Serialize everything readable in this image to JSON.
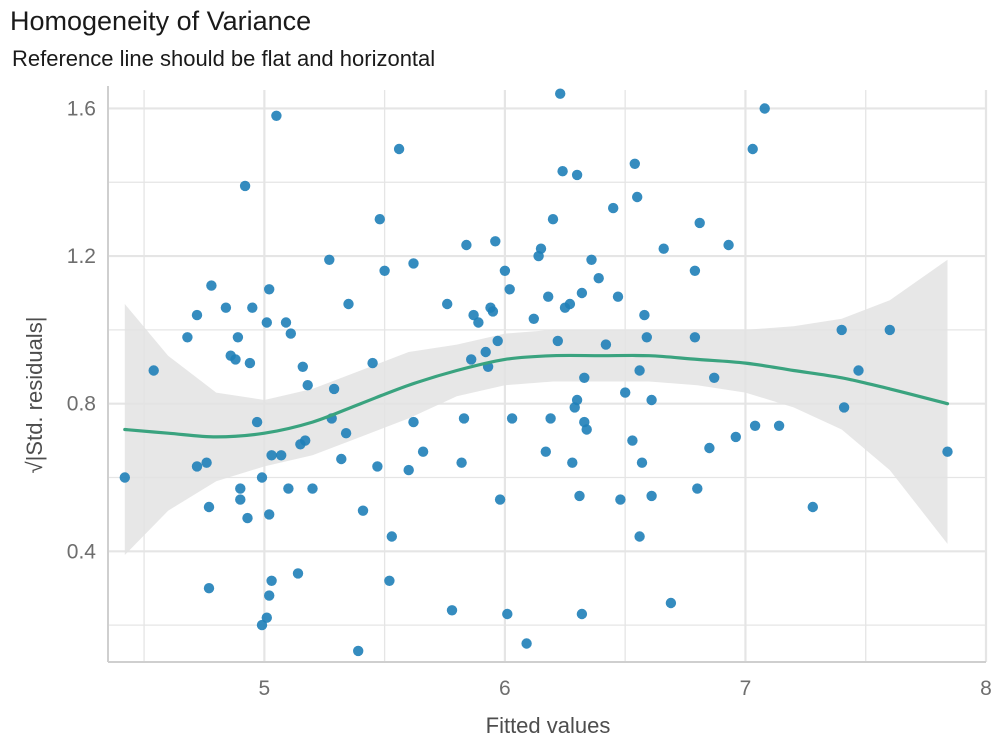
{
  "chart_data": {
    "type": "scatter",
    "title": "Homogeneity of Variance",
    "subtitle": "Reference line should be flat and horizontal",
    "xlabel": "Fitted values",
    "ylabel": "√|Std. residuals|",
    "ylabel_radical": "√",
    "ylabel_text": "|Std. residuals|",
    "xlim": [
      4.35,
      8.0
    ],
    "ylim": [
      0.1,
      1.65
    ],
    "x_ticks": [
      5,
      6,
      7,
      8
    ],
    "x_tick_labels": [
      "5",
      "6",
      "7",
      "8"
    ],
    "y_ticks": [
      0.4,
      0.8,
      1.2,
      1.6
    ],
    "y_tick_labels": [
      "0.4",
      "0.8",
      "1.2",
      "1.6"
    ],
    "x_minor_ticks": [
      4.5,
      5.5,
      6.5,
      7.5
    ],
    "y_minor_ticks": [
      0.2,
      0.6,
      1.0,
      1.4
    ],
    "grid": true,
    "colors": {
      "points": "#1f7fb8",
      "smooth": "#3aa37f",
      "band": "#e3e3e3",
      "grid": "#e5e5e5"
    },
    "series": [
      {
        "type": "scatter",
        "points": [
          [
            4.42,
            0.6
          ],
          [
            4.54,
            0.89
          ],
          [
            4.68,
            0.98
          ],
          [
            4.72,
            1.04
          ],
          [
            4.72,
            0.63
          ],
          [
            4.76,
            0.64
          ],
          [
            4.77,
            0.52
          ],
          [
            4.78,
            1.12
          ],
          [
            4.77,
            0.3
          ],
          [
            4.84,
            1.06
          ],
          [
            4.86,
            0.93
          ],
          [
            4.88,
            0.92
          ],
          [
            4.89,
            0.98
          ],
          [
            4.9,
            0.57
          ],
          [
            4.9,
            0.54
          ],
          [
            4.92,
            1.39
          ],
          [
            4.93,
            0.49
          ],
          [
            4.94,
            0.91
          ],
          [
            4.95,
            1.06
          ],
          [
            4.97,
            0.75
          ],
          [
            4.99,
            0.6
          ],
          [
            4.99,
            0.2
          ],
          [
            5.01,
            0.22
          ],
          [
            5.01,
            1.02
          ],
          [
            5.02,
            0.5
          ],
          [
            5.02,
            0.28
          ],
          [
            5.02,
            1.11
          ],
          [
            5.03,
            0.66
          ],
          [
            5.03,
            0.32
          ],
          [
            5.05,
            1.58
          ],
          [
            5.07,
            0.66
          ],
          [
            5.09,
            1.02
          ],
          [
            5.1,
            0.57
          ],
          [
            5.11,
            0.99
          ],
          [
            5.14,
            0.34
          ],
          [
            5.15,
            0.69
          ],
          [
            5.16,
            0.9
          ],
          [
            5.17,
            0.7
          ],
          [
            5.18,
            0.85
          ],
          [
            5.2,
            0.57
          ],
          [
            5.27,
            1.19
          ],
          [
            5.28,
            0.76
          ],
          [
            5.29,
            0.84
          ],
          [
            5.32,
            0.65
          ],
          [
            5.34,
            0.72
          ],
          [
            5.35,
            1.07
          ],
          [
            5.39,
            0.13
          ],
          [
            5.41,
            0.51
          ],
          [
            5.45,
            0.91
          ],
          [
            5.47,
            0.63
          ],
          [
            5.48,
            1.3
          ],
          [
            5.5,
            1.16
          ],
          [
            5.52,
            0.32
          ],
          [
            5.53,
            0.44
          ],
          [
            5.56,
            1.49
          ],
          [
            5.6,
            0.62
          ],
          [
            5.62,
            1.18
          ],
          [
            5.62,
            0.75
          ],
          [
            5.66,
            0.67
          ],
          [
            5.76,
            1.07
          ],
          [
            5.78,
            0.24
          ],
          [
            5.82,
            0.64
          ],
          [
            5.83,
            0.76
          ],
          [
            5.84,
            1.23
          ],
          [
            5.86,
            0.92
          ],
          [
            5.87,
            1.04
          ],
          [
            5.89,
            1.02
          ],
          [
            5.92,
            0.94
          ],
          [
            5.93,
            0.9
          ],
          [
            5.94,
            1.06
          ],
          [
            5.95,
            1.05
          ],
          [
            5.96,
            1.24
          ],
          [
            5.97,
            0.97
          ],
          [
            5.98,
            0.54
          ],
          [
            6.0,
            1.16
          ],
          [
            6.01,
            0.23
          ],
          [
            6.02,
            1.11
          ],
          [
            6.03,
            0.76
          ],
          [
            6.09,
            0.15
          ],
          [
            6.12,
            1.03
          ],
          [
            6.14,
            1.2
          ],
          [
            6.15,
            1.22
          ],
          [
            6.17,
            0.67
          ],
          [
            6.18,
            1.09
          ],
          [
            6.19,
            0.76
          ],
          [
            6.2,
            1.3
          ],
          [
            6.22,
            0.97
          ],
          [
            6.23,
            1.64
          ],
          [
            6.24,
            1.43
          ],
          [
            6.25,
            1.06
          ],
          [
            6.27,
            1.07
          ],
          [
            6.28,
            0.64
          ],
          [
            6.29,
            0.79
          ],
          [
            6.3,
            0.81
          ],
          [
            6.3,
            1.42
          ],
          [
            6.31,
            0.55
          ],
          [
            6.32,
            0.23
          ],
          [
            6.32,
            1.1
          ],
          [
            6.33,
            0.75
          ],
          [
            6.33,
            0.87
          ],
          [
            6.34,
            0.73
          ],
          [
            6.36,
            1.19
          ],
          [
            6.39,
            1.14
          ],
          [
            6.42,
            0.96
          ],
          [
            6.45,
            1.33
          ],
          [
            6.47,
            1.09
          ],
          [
            6.48,
            0.54
          ],
          [
            6.5,
            0.83
          ],
          [
            6.53,
            0.7
          ],
          [
            6.54,
            1.45
          ],
          [
            6.55,
            1.36
          ],
          [
            6.56,
            0.89
          ],
          [
            6.56,
            0.44
          ],
          [
            6.57,
            0.64
          ],
          [
            6.58,
            1.04
          ],
          [
            6.59,
            0.98
          ],
          [
            6.61,
            0.81
          ],
          [
            6.61,
            0.55
          ],
          [
            6.66,
            1.22
          ],
          [
            6.69,
            0.26
          ],
          [
            6.79,
            0.98
          ],
          [
            6.79,
            1.16
          ],
          [
            6.8,
            0.57
          ],
          [
            6.81,
            1.29
          ],
          [
            6.85,
            0.68
          ],
          [
            6.87,
            0.87
          ],
          [
            6.93,
            1.23
          ],
          [
            6.96,
            0.71
          ],
          [
            7.03,
            1.49
          ],
          [
            7.04,
            0.74
          ],
          [
            7.08,
            1.6
          ],
          [
            7.14,
            0.74
          ],
          [
            7.28,
            0.52
          ],
          [
            7.4,
            1.0
          ],
          [
            7.41,
            0.79
          ],
          [
            7.47,
            0.89
          ],
          [
            7.6,
            1.0
          ],
          [
            7.84,
            0.67
          ]
        ]
      },
      {
        "type": "smooth",
        "x": [
          4.42,
          4.6,
          4.8,
          5.0,
          5.2,
          5.4,
          5.6,
          5.8,
          6.0,
          6.2,
          6.4,
          6.6,
          6.8,
          7.0,
          7.2,
          7.4,
          7.6,
          7.84
        ],
        "y": [
          0.73,
          0.72,
          0.71,
          0.72,
          0.75,
          0.8,
          0.85,
          0.89,
          0.92,
          0.93,
          0.93,
          0.93,
          0.92,
          0.91,
          0.89,
          0.87,
          0.84,
          0.8
        ],
        "lower": [
          0.39,
          0.51,
          0.59,
          0.63,
          0.66,
          0.71,
          0.76,
          0.82,
          0.85,
          0.86,
          0.86,
          0.86,
          0.85,
          0.83,
          0.79,
          0.73,
          0.62,
          0.42
        ],
        "upper": [
          1.07,
          0.93,
          0.83,
          0.81,
          0.84,
          0.89,
          0.94,
          0.96,
          0.99,
          1.0,
          1.0,
          1.0,
          1.0,
          1.0,
          1.01,
          1.03,
          1.08,
          1.19
        ]
      }
    ]
  }
}
